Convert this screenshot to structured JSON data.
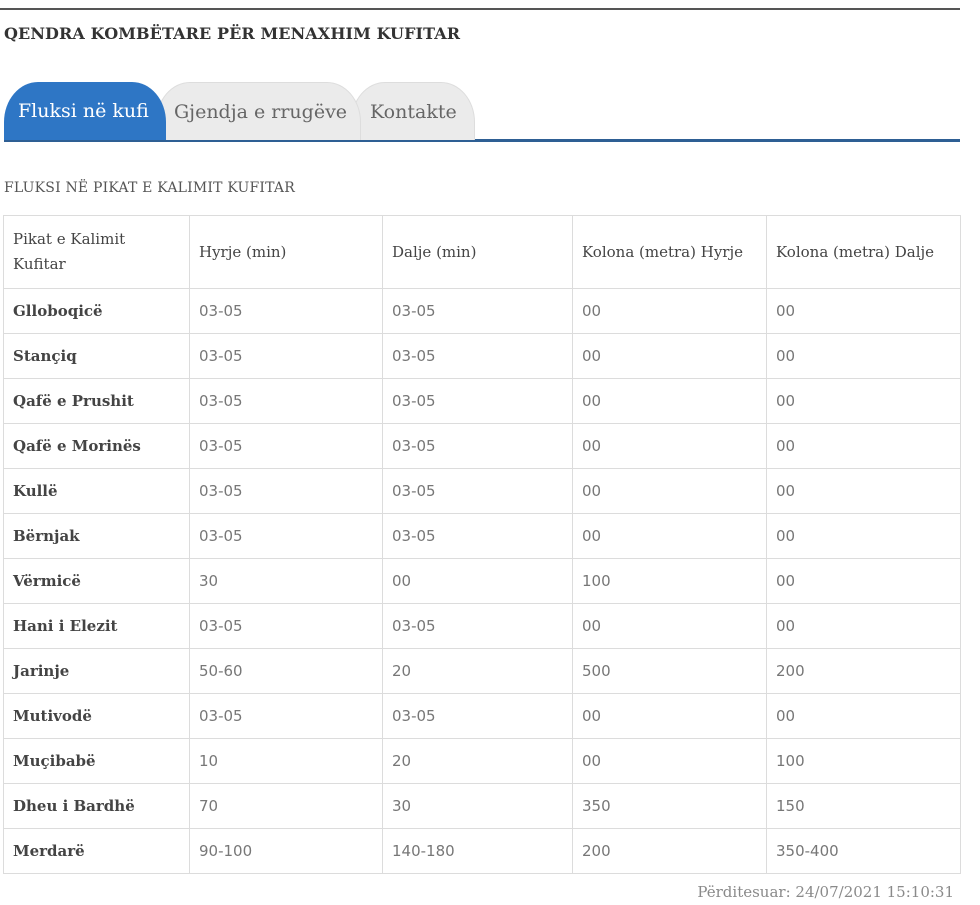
{
  "header": {
    "title": "QENDRA KOMBËTARE PËR MENAXHIM KUFITAR"
  },
  "tabs": [
    {
      "label": "Fluksi në kufi",
      "active": true
    },
    {
      "label": "Gjendja e rrugëve",
      "active": false
    },
    {
      "label": "Kontakte",
      "active": false
    }
  ],
  "section": {
    "title": "FLUKSI NË PIKAT E KALIMIT KUFITAR"
  },
  "table": {
    "headers": [
      "Pikat e Kalimit Kufitar",
      "Hyrje (min)",
      "Dalje (min)",
      "Kolona (metra) Hyrje",
      "Kolona (metra) Dalje"
    ],
    "rows": [
      [
        "Glloboqicë",
        "03-05",
        "03-05",
        "00",
        "00"
      ],
      [
        "Stançiq",
        "03-05",
        "03-05",
        "00",
        "00"
      ],
      [
        "Qafë e Prushit",
        "03-05",
        "03-05",
        "00",
        "00"
      ],
      [
        "Qafë e Morinës",
        "03-05",
        "03-05",
        "00",
        "00"
      ],
      [
        "Kullë",
        "03-05",
        "03-05",
        "00",
        "00"
      ],
      [
        "Bërnjak",
        "03-05",
        "03-05",
        "00",
        "00"
      ],
      [
        "Vërmicë",
        "30",
        "00",
        "100",
        "00"
      ],
      [
        "Hani i Elezit",
        "03-05",
        "03-05",
        "00",
        "00"
      ],
      [
        "Jarinje",
        "50-60",
        "20",
        "500",
        "200"
      ],
      [
        "Mutivodë",
        "03-05",
        "03-05",
        "00",
        "00"
      ],
      [
        "Muçibabë",
        "10",
        "20",
        "00",
        "100"
      ],
      [
        "Dheu i Bardhë",
        "70",
        "30",
        "350",
        "150"
      ],
      [
        "Merdarë",
        "90-100",
        "140-180",
        "200",
        "350-400"
      ]
    ]
  },
  "footer": {
    "updated": "Përditesuar: 24/07/2021 15:10:31"
  },
  "colors": {
    "accent": "#2e76c5",
    "tab_line": "#2e5f94",
    "inactive_tab": "#ebebeb"
  }
}
